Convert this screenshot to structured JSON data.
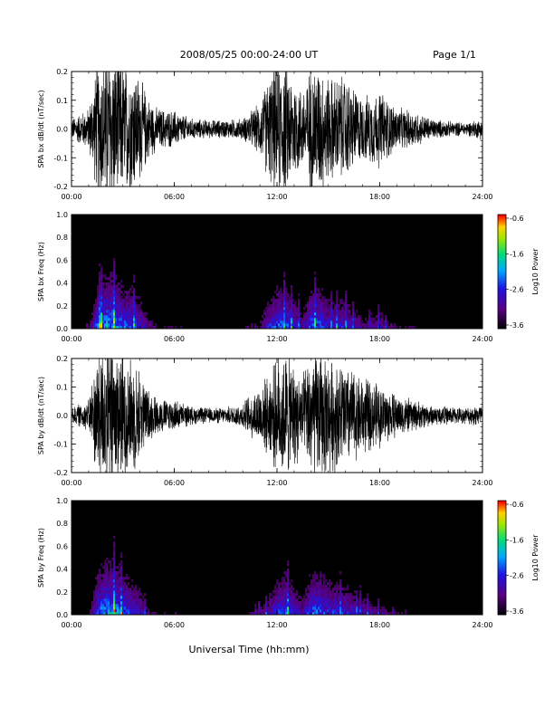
{
  "header": {
    "title": "2008/05/25  00:00-24:00 UT",
    "page": "Page 1/1"
  },
  "xlabel": "Universal Time (hh:mm)",
  "chart_data": [
    {
      "type": "line",
      "ylabel": "SPA bx dB/dt (nT/sec)",
      "xlim": [
        0,
        24
      ],
      "ylim": [
        -0.2,
        0.2
      ],
      "x_ticks": [
        "00:00",
        "06:00",
        "12:00",
        "18:00",
        "24:00"
      ],
      "y_ticks": [
        "-0.2",
        "-0.1",
        "0.0",
        "0.1",
        "0.2"
      ],
      "envelope": {
        "hours": [
          0,
          1,
          1.5,
          2,
          2.5,
          3,
          3.5,
          4,
          4.5,
          5,
          6,
          7,
          8,
          9,
          10,
          11,
          11.5,
          12,
          12.5,
          13,
          13.5,
          14,
          14.5,
          15,
          16,
          17,
          18,
          19,
          20,
          21,
          22,
          23,
          24
        ],
        "amplitude": [
          0.04,
          0.08,
          0.25,
          0.3,
          0.3,
          0.25,
          0.25,
          0.2,
          0.12,
          0.08,
          0.07,
          0.04,
          0.035,
          0.035,
          0.04,
          0.1,
          0.2,
          0.25,
          0.25,
          0.2,
          0.15,
          0.25,
          0.25,
          0.2,
          0.2,
          0.12,
          0.15,
          0.08,
          0.07,
          0.04,
          0.03,
          0.025,
          0.04
        ]
      }
    },
    {
      "type": "heatmap",
      "ylabel": "SPA bx Freq (Hz)",
      "xlim": [
        0,
        24
      ],
      "ylim": [
        0,
        1
      ],
      "x_ticks": [
        "00:00",
        "06:00",
        "12:00",
        "18:00",
        "24:00"
      ],
      "y_ticks": [
        "0.0",
        "0.2",
        "0.4",
        "0.6",
        "0.8",
        "1.0"
      ],
      "colorbar": {
        "label": "Log10 Power",
        "range": [
          -3.6,
          -0.6
        ],
        "ticks": [
          "-0.6",
          "-1.6",
          "-2.6",
          "-3.6"
        ]
      }
    },
    {
      "type": "line",
      "ylabel": "SPA by dB/dt (nT/sec)",
      "xlim": [
        0,
        24
      ],
      "ylim": [
        -0.2,
        0.2
      ],
      "x_ticks": [
        "00:00",
        "06:00",
        "12:00",
        "18:00",
        "24:00"
      ],
      "y_ticks": [
        "-0.2",
        "-0.1",
        "0.0",
        "0.1",
        "0.2"
      ],
      "envelope": {
        "hours": [
          0,
          1,
          1.5,
          2,
          2.5,
          3,
          3.5,
          4,
          4.5,
          5,
          6,
          7,
          8,
          9,
          10,
          11,
          11.5,
          12,
          12.5,
          13,
          13.5,
          14,
          14.5,
          15,
          16,
          17,
          18,
          19,
          20,
          21,
          22,
          23,
          24
        ],
        "amplitude": [
          0.03,
          0.06,
          0.25,
          0.3,
          0.3,
          0.25,
          0.22,
          0.18,
          0.1,
          0.07,
          0.06,
          0.035,
          0.03,
          0.03,
          0.05,
          0.12,
          0.15,
          0.22,
          0.25,
          0.2,
          0.15,
          0.25,
          0.25,
          0.22,
          0.2,
          0.15,
          0.12,
          0.08,
          0.06,
          0.04,
          0.035,
          0.03,
          0.05
        ]
      }
    },
    {
      "type": "heatmap",
      "ylabel": "SPA by Freq (Hz)",
      "xlim": [
        0,
        24
      ],
      "ylim": [
        0,
        1
      ],
      "x_ticks": [
        "00:00",
        "06:00",
        "12:00",
        "18:00",
        "24:00"
      ],
      "y_ticks": [
        "0.0",
        "0.2",
        "0.4",
        "0.6",
        "0.8",
        "1.0"
      ],
      "colorbar": {
        "label": "Log10 Power",
        "range": [
          -3.6,
          -0.6
        ],
        "ticks": [
          "-0.6",
          "-1.6",
          "-2.6",
          "-3.6"
        ]
      }
    }
  ]
}
